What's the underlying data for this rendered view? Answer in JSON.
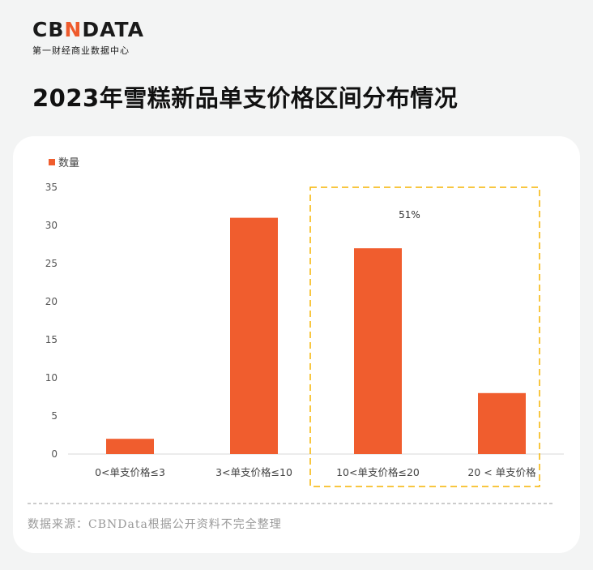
{
  "header": {
    "logo_text_1": "CB",
    "logo_text_2": "N",
    "logo_text_3": "DATA",
    "logo_subtitle": "第一财经商业数据中心",
    "title": "2023年雪糕新品单支价格区间分布情况"
  },
  "source": "数据来源：CBNData根据公开资料不完全整理",
  "colors": {
    "bar": "#f05d2e",
    "highlight_box": "#f5b400",
    "accent": "#ee5a2c"
  },
  "chart_data": {
    "type": "bar",
    "categories": [
      "0<单支价格≤3",
      "3<单支价格≤10",
      "10<单支价格≤20",
      "20 < 单支价格"
    ],
    "series": [
      {
        "name": "数量",
        "values": [
          2,
          31,
          27,
          8
        ]
      }
    ],
    "ylim": [
      0,
      35
    ],
    "yticks": [
      0,
      5,
      10,
      15,
      20,
      25,
      30,
      35
    ],
    "legend_position": "top-left",
    "grid": false,
    "annotation": "51%"
  }
}
